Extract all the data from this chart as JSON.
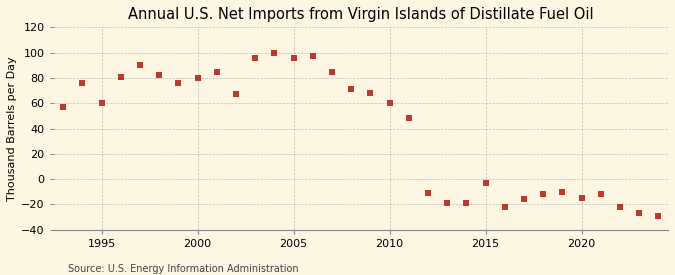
{
  "title": "Annual U.S. Net Imports from Virgin Islands of Distillate Fuel Oil",
  "ylabel": "Thousand Barrels per Day",
  "source": "Source: U.S. Energy Information Administration",
  "background_color": "#fdf6e3",
  "plot_background_color": "#fdf6e3",
  "marker_color": "#c0392b",
  "marker": "s",
  "markersize": 4.5,
  "ylim": [
    -40,
    120
  ],
  "yticks": [
    -40,
    -20,
    0,
    20,
    40,
    60,
    80,
    100,
    120
  ],
  "xlim": [
    1992.5,
    2024.5
  ],
  "xticks": [
    1995,
    2000,
    2005,
    2010,
    2015,
    2020
  ],
  "years": [
    1993,
    1994,
    1995,
    1996,
    1997,
    1998,
    1999,
    2000,
    2001,
    2002,
    2003,
    2004,
    2005,
    2006,
    2007,
    2008,
    2009,
    2010,
    2011,
    2012,
    2013,
    2014,
    2015,
    2016,
    2017,
    2018,
    2019,
    2020,
    2021,
    2022,
    2023,
    2024
  ],
  "values": [
    57,
    76,
    60,
    81,
    90,
    82,
    76,
    80,
    85,
    67,
    96,
    100,
    96,
    97,
    85,
    71,
    68,
    60,
    48,
    -11,
    -19,
    -19,
    -3,
    -22,
    -16,
    -12,
    -10,
    -15,
    -12,
    -22,
    -27,
    -29
  ],
  "title_fontsize": 10.5,
  "ylabel_fontsize": 8,
  "tick_fontsize": 8,
  "source_fontsize": 7,
  "grid_color": "#aaaaaa",
  "grid_alpha": 0.7,
  "grid_linestyle": "--",
  "grid_linewidth": 0.5,
  "spine_color": "#888888"
}
